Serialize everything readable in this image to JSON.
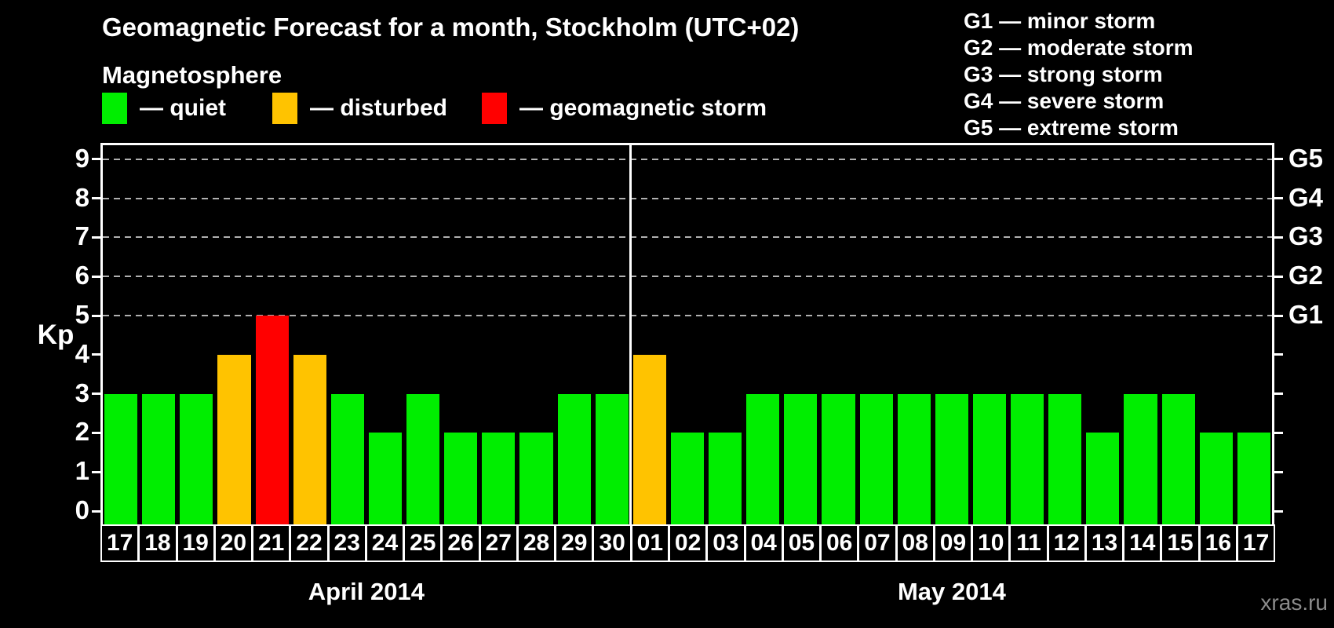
{
  "title": "Geomagnetic Forecast for a month, Stockholm (UTC+02)",
  "magnetosphere_legend": {
    "heading": "Magnetosphere",
    "items": [
      {
        "name": "quiet",
        "label": "— quiet",
        "color": "#00ee00"
      },
      {
        "name": "disturbed",
        "label": "— disturbed",
        "color": "#ffc300"
      },
      {
        "name": "storm",
        "label": "— geomagnetic storm",
        "color": "#ff0000"
      }
    ]
  },
  "g_scale_legend": [
    "G1 — minor storm",
    "G2 — moderate storm",
    "G3 — strong storm",
    "G4 — severe storm",
    "G5 — extreme storm"
  ],
  "watermark": "xras.ru",
  "chart_data": {
    "type": "bar",
    "ylabel": "Kp",
    "ylim": [
      0,
      9
    ],
    "yticks": [
      0,
      1,
      2,
      3,
      4,
      5,
      6,
      7,
      8,
      9
    ],
    "gridlines_at_kp": [
      5,
      6,
      7,
      8,
      9
    ],
    "grid": "dashed horizontal at Kp 5-9 only",
    "legend_position": "top",
    "right_axis": [
      {
        "label": "G1",
        "kp": 5
      },
      {
        "label": "G2",
        "kp": 6
      },
      {
        "label": "G3",
        "kp": 7
      },
      {
        "label": "G4",
        "kp": 8
      },
      {
        "label": "G5",
        "kp": 9
      }
    ],
    "status_colors": {
      "quiet": "#00ee00",
      "disturbed": "#ffc300",
      "storm": "#ff0000"
    },
    "months": [
      {
        "label": "April 2014",
        "day_count": 14
      },
      {
        "label": "May 2014",
        "day_count": 17
      }
    ],
    "points": [
      {
        "day": "17",
        "kp": 3,
        "status": "quiet"
      },
      {
        "day": "18",
        "kp": 3,
        "status": "quiet"
      },
      {
        "day": "19",
        "kp": 3,
        "status": "quiet"
      },
      {
        "day": "20",
        "kp": 4,
        "status": "disturbed"
      },
      {
        "day": "21",
        "kp": 5,
        "status": "storm"
      },
      {
        "day": "22",
        "kp": 4,
        "status": "disturbed"
      },
      {
        "day": "23",
        "kp": 3,
        "status": "quiet"
      },
      {
        "day": "24",
        "kp": 2,
        "status": "quiet"
      },
      {
        "day": "25",
        "kp": 3,
        "status": "quiet"
      },
      {
        "day": "26",
        "kp": 2,
        "status": "quiet"
      },
      {
        "day": "27",
        "kp": 2,
        "status": "quiet"
      },
      {
        "day": "28",
        "kp": 2,
        "status": "quiet"
      },
      {
        "day": "29",
        "kp": 3,
        "status": "quiet"
      },
      {
        "day": "30",
        "kp": 3,
        "status": "quiet"
      },
      {
        "day": "01",
        "kp": 4,
        "status": "disturbed"
      },
      {
        "day": "02",
        "kp": 2,
        "status": "quiet"
      },
      {
        "day": "03",
        "kp": 2,
        "status": "quiet"
      },
      {
        "day": "04",
        "kp": 3,
        "status": "quiet"
      },
      {
        "day": "05",
        "kp": 3,
        "status": "quiet"
      },
      {
        "day": "06",
        "kp": 3,
        "status": "quiet"
      },
      {
        "day": "07",
        "kp": 3,
        "status": "quiet"
      },
      {
        "day": "08",
        "kp": 3,
        "status": "quiet"
      },
      {
        "day": "09",
        "kp": 3,
        "status": "quiet"
      },
      {
        "day": "10",
        "kp": 3,
        "status": "quiet"
      },
      {
        "day": "11",
        "kp": 3,
        "status": "quiet"
      },
      {
        "day": "12",
        "kp": 3,
        "status": "quiet"
      },
      {
        "day": "13",
        "kp": 2,
        "status": "quiet"
      },
      {
        "day": "14",
        "kp": 3,
        "status": "quiet"
      },
      {
        "day": "15",
        "kp": 3,
        "status": "quiet"
      },
      {
        "day": "16",
        "kp": 2,
        "status": "quiet"
      },
      {
        "day": "17",
        "kp": 2,
        "status": "quiet"
      }
    ]
  }
}
